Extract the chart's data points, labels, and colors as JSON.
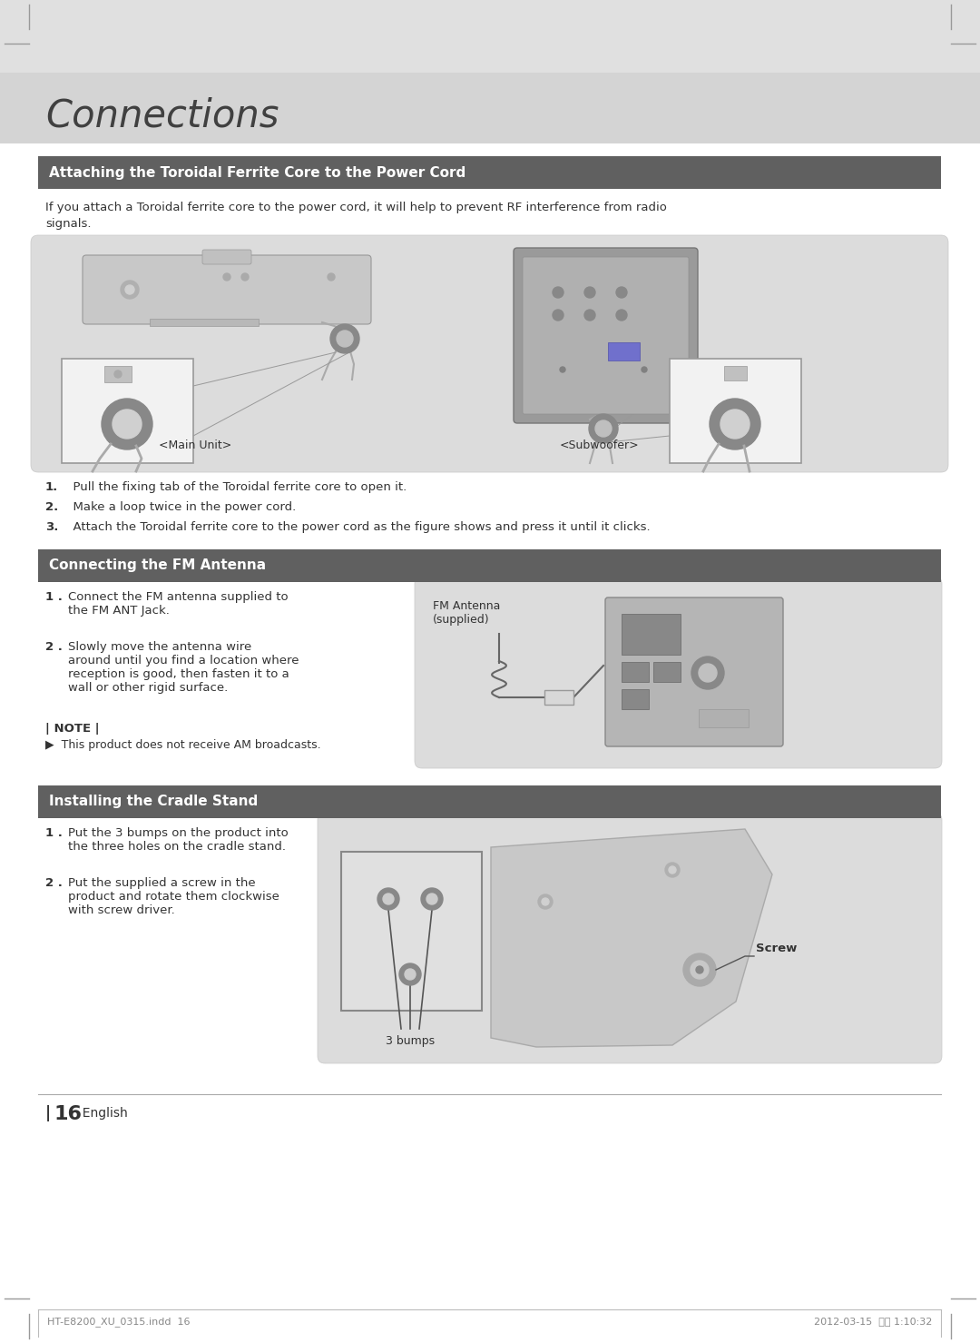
{
  "page_bg": "#ffffff",
  "header_bg_color": "#d0d0d0",
  "section_header_bg": "#606060",
  "section_header_color": "#ffffff",
  "title_text": "Connections",
  "title_size": 30,
  "section1_title": "Attaching the Toroidal Ferrite Core to the Power Cord",
  "section1_desc1": "If you attach a Toroidal ferrite core to the power cord, it will help to prevent RF interference from radio",
  "section1_desc2": "signals.",
  "section1_label1": "<Main Unit>",
  "section1_label2": "<Subwoofer>",
  "section1_steps": [
    {
      "num": "1.",
      "text": "  Pull the fixing tab of the Toroidal ferrite core to open it."
    },
    {
      "num": "2.",
      "text": "  Make a loop twice in the power cord."
    },
    {
      "num": "3.",
      "text": "  Attach the Toroidal ferrite core to the power cord as the figure shows and press it until it clicks."
    }
  ],
  "section2_title": "Connecting the FM Antenna",
  "section2_step1_num": "1 .",
  "section2_step1_text": "Connect the FM antenna supplied to\nthe FM ANT Jack.",
  "section2_step2_num": "2 .",
  "section2_step2_text": "Slowly move the antenna wire\naround until you find a location where\nreception is good, then fasten it to a\nwall or other rigid surface.",
  "section2_note_title": "| NOTE |",
  "section2_note": "▶  This product does not receive AM broadcasts.",
  "section2_image_label": "FM Antenna\n(supplied)",
  "section3_title": "Installing the Cradle Stand",
  "section3_step1_num": "1 .",
  "section3_step1_text": "Put the 3 bumps on the product into\nthe three holes on the cradle stand.",
  "section3_step2_num": "2 .",
  "section3_step2_text": "Put the supplied a screw in the\nproduct and rotate them clockwise\nwith screw driver.",
  "section3_label1": "3 bumps",
  "section3_label2": "Screw",
  "page_num_bar": "| ",
  "page_num": "16",
  "page_num_suffix": "  English",
  "footer_left": "HT-E8200_XU_0315.indd  16",
  "footer_right": "2012-03-15  오후 1:10:32",
  "image_area_bg": "#dcdcdc",
  "body_text_size": 9.5,
  "step_text_size": 9.5
}
